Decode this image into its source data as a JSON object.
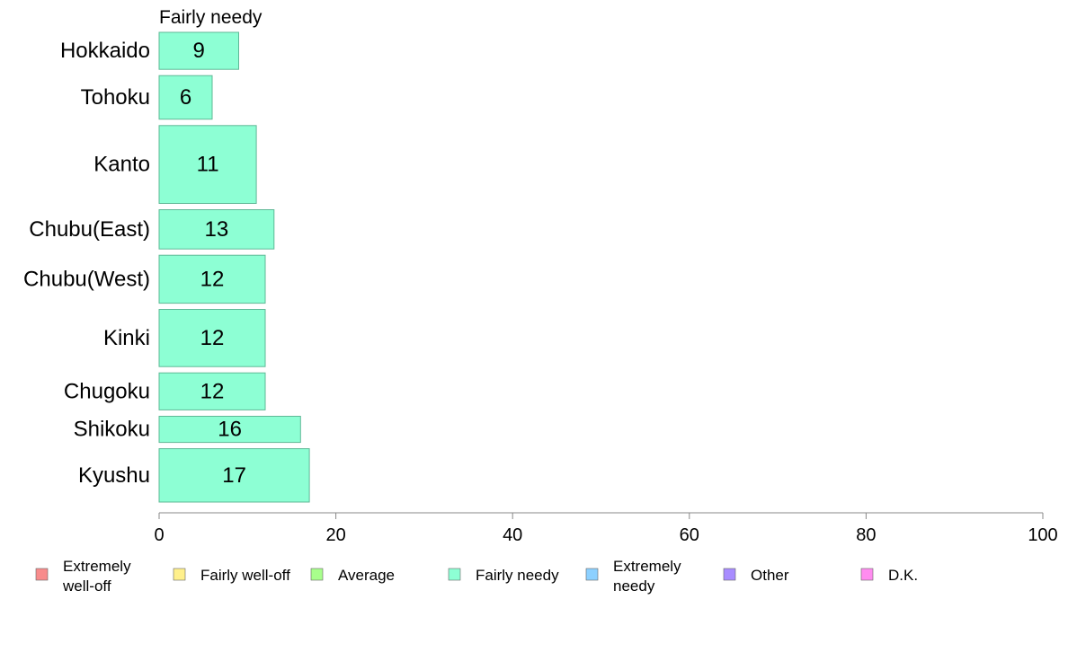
{
  "chart_data": {
    "type": "bar",
    "orientation": "horizontal",
    "panel_title": "Fairly needy",
    "categories": [
      "Hokkaido",
      "Tohoku",
      "Kanto",
      "Chubu(East)",
      "Chubu(West)",
      "Kinki",
      "Chugoku",
      "Shikoku",
      "Kyushu"
    ],
    "series": [
      {
        "name": "Fairly needy",
        "values": [
          9,
          6,
          11,
          13,
          12,
          12,
          12,
          16,
          17
        ],
        "color": "#8dffd4"
      }
    ],
    "bar_thickness_relative": [
      0.68,
      0.8,
      1.43,
      0.72,
      0.88,
      1.05,
      0.68,
      0.48,
      0.98
    ],
    "xlim": [
      0,
      100
    ],
    "xticks": [
      "0",
      "20",
      "40",
      "60",
      "80",
      "100"
    ],
    "xlabel": "",
    "ylabel": "",
    "grid": false,
    "legend_position": "bottom",
    "legend": [
      {
        "label": "Extremely well-off",
        "color": "#f88c8c"
      },
      {
        "label": "Fairly well-off",
        "color": "#fff08c"
      },
      {
        "label": "Average",
        "color": "#a8ff8c"
      },
      {
        "label": "Fairly needy",
        "color": "#8dffd4"
      },
      {
        "label": "Extremely needy",
        "color": "#8cd0ff"
      },
      {
        "label": "Other",
        "color": "#a88cff"
      },
      {
        "label": "D.K.",
        "color": "#ff8cf0"
      }
    ]
  }
}
